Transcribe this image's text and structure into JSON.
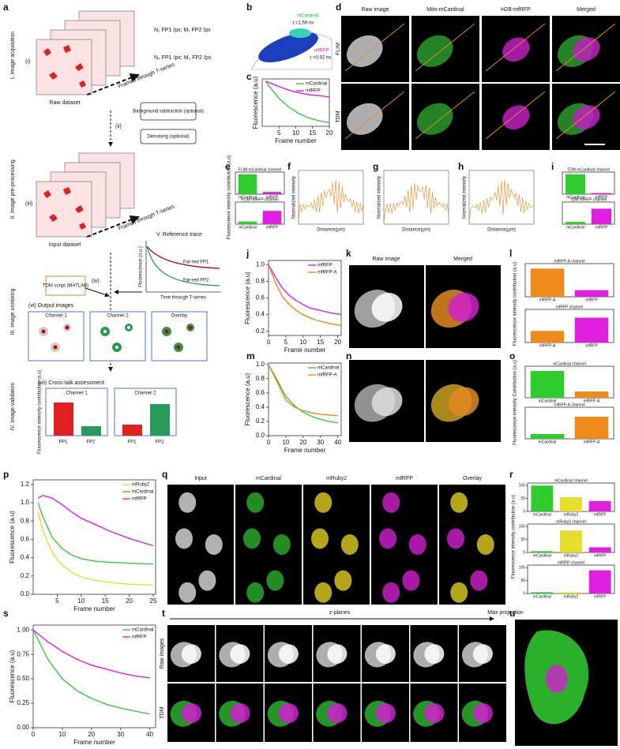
{
  "a": {
    "letter": "a",
    "s1": "I. Image acquisition",
    "s2": "II. Image pre-processing",
    "s3": "III. Image unmixing",
    "s4": "IV. Image validation",
    "i": "(i)",
    "frames1": "Frames through T-series",
    "raw": "Raw dataset",
    "n1": "N₁ FP1 /px; M₁ FP2 /px",
    "n2": "N₂ FP1 /px; M₂ FP2 /px",
    "bg": "Background subtraction (optional)",
    "ii": "(ii)",
    "dn": "Denoising (optional)",
    "iii": "(iii)",
    "frames2": "Frames through T-series",
    "input": "Input dataset",
    "ref": "V. Reference trace",
    "fr1": "Far-red FP1",
    "fr2": "Far-red FP2",
    "fl": "Fluorescence (a.u.)",
    "time": "Time through T-series",
    "tdm": "TDM script (MATLAB)",
    "iv": "(iv)",
    "out": "(vi) Output images",
    "ch1": "Channel 1",
    "ch2": "Channel 2",
    "ov": "Overlay",
    "ct": "(vii) Cross-talk assessment",
    "vch1": "Channel 1",
    "vch2": "Channel 2",
    "vy": "Fluorescence intensity contribution (a.u)",
    "fp1a": "FP1",
    "fp2a": "FP2",
    "fp1b": "FP1",
    "fp2b": "FP2"
  },
  "b": {
    "letter": "b",
    "m": "mCardinal",
    "tm": "τ =1.59 ns",
    "r": "mfRFP",
    "tr": "τ =0.92 ns"
  },
  "d": {
    "letter": "d",
    "cols": [
      "Raw image",
      "Mito-mCardinal",
      "H2B-mfRFP",
      "Merged"
    ],
    "rows": [
      "FLIM",
      "TDM"
    ]
  },
  "profiles": {
    "letters": [
      "f",
      "g",
      "h"
    ],
    "ylabel": "Normalized intensity",
    "xlabel": "Distance(µm)"
  },
  "letters": {
    "c": "c",
    "e": "e",
    "i": "i",
    "j": "j",
    "k": "k",
    "l": "l",
    "m": "m",
    "n": "n",
    "o": "o",
    "p": "p",
    "q": "q",
    "r": "r",
    "s": "s",
    "t": "t",
    "u": "u"
  },
  "k": {
    "cols": [
      "Raw image",
      "Merged"
    ]
  },
  "q": {
    "cols": [
      "Input",
      "mCardinal",
      "mRuby2",
      "mfRFP",
      "Overlay"
    ]
  },
  "t": {
    "z": "z-planes",
    "max": "Max projection",
    "rows": [
      "Raw images",
      "TDM"
    ]
  },
  "bar_ylabels": {
    "e": "Fluorescence intensity contribution (a.u)",
    "l": "Fluorescence intensity contribution (a.u)",
    "o": "Fluorescence intensity Contribution (a.u)",
    "r": "Fluorescence intensity contribution (a.u)"
  },
  "chart_data": [
    {
      "type": "line",
      "xlabel": "Frame number",
      "ylabel": "Fluorescence (a.u)",
      "xlim": [
        0,
        20
      ],
      "ylim": [
        0,
        1.05
      ],
      "xticks": [
        5,
        10,
        15,
        20
      ],
      "legend": "upper right",
      "x": [
        1,
        3,
        5,
        8,
        11,
        14,
        17,
        20
      ],
      "series": [
        {
          "name": "mCardinal",
          "color": "#3ec43e",
          "values": [
            1,
            0.8,
            0.62,
            0.42,
            0.28,
            0.18,
            0.12,
            0.08
          ]
        },
        {
          "name": "mfRFP",
          "color": "#e020e0",
          "values": [
            1,
            0.94,
            0.88,
            0.8,
            0.74,
            0.7,
            0.68,
            0.65
          ]
        }
      ]
    },
    {
      "type": "line",
      "xlabel": "Frame number",
      "ylabel": "Fluorescence (a.u)",
      "xlim": [
        0,
        21
      ],
      "ylim": [
        0.15,
        1.05
      ],
      "xticks": [
        0,
        5,
        10,
        15,
        20
      ],
      "yticks": [
        0.2,
        0.4,
        0.6,
        0.8,
        {
          "value": 1,
          "label": "1.0"
        }
      ],
      "legend": "upper right",
      "x": [
        0,
        2,
        4,
        6,
        8,
        10,
        12,
        14,
        16,
        18,
        21
      ],
      "series": [
        {
          "name": "mfRFP",
          "color": "#e020e0",
          "values": [
            1,
            0.85,
            0.72,
            0.63,
            0.57,
            0.52,
            0.48,
            0.46,
            0.44,
            0.42,
            0.4
          ]
        },
        {
          "name": "mfRFP-A",
          "color": "#e88a1a",
          "values": [
            1,
            0.78,
            0.62,
            0.52,
            0.45,
            0.4,
            0.36,
            0.33,
            0.31,
            0.29,
            0.27
          ]
        }
      ]
    },
    {
      "type": "line",
      "xlabel": "Frame number",
      "ylabel": "Fluorescence (a.u)",
      "xlim": [
        0,
        42
      ],
      "ylim": [
        0,
        1.02
      ],
      "xticks": [
        0,
        10,
        20,
        30,
        40
      ],
      "yticks": [
        {
          "value": 0,
          "label": "0.0"
        },
        0.2,
        0.4,
        0.6,
        0.8,
        {
          "value": 1,
          "label": "1.0"
        }
      ],
      "legend": "upper right",
      "x": [
        0,
        5,
        10,
        15,
        20,
        25,
        30,
        35,
        40
      ],
      "series": [
        {
          "name": "mCardinal",
          "color": "#3ec43e",
          "values": [
            1,
            0.78,
            0.55,
            0.42,
            0.33,
            0.27,
            0.23,
            0.2,
            0.18
          ]
        },
        {
          "name": "mfRFP-A",
          "color": "#e88a1a",
          "values": [
            1,
            0.75,
            0.5,
            0.4,
            0.35,
            0.32,
            0.3,
            0.29,
            0.28
          ]
        }
      ]
    },
    {
      "type": "line",
      "xlabel": "Frame number",
      "ylabel": "Fluorescence (a.u)",
      "xlim": [
        0,
        25.5
      ],
      "ylim": [
        0,
        1.25
      ],
      "xticks": [
        5,
        10,
        15,
        20,
        25
      ],
      "yticks": [
        {
          "value": 0,
          "label": "0.0"
        },
        0.2,
        0.4,
        0.6,
        0.8,
        {
          "value": 1,
          "label": "1.0"
        },
        1.2
      ],
      "legend": "upper right",
      "x": [
        1,
        2,
        4,
        6,
        8,
        10,
        13,
        16,
        20,
        25
      ],
      "series": [
        {
          "name": "mRuby2",
          "color": "#e6dc2a",
          "values": [
            0.9,
            0.7,
            0.45,
            0.32,
            0.24,
            0.19,
            0.15,
            0.13,
            0.11,
            0.1
          ]
        },
        {
          "name": "mCardinal",
          "color": "#3ec43e",
          "values": [
            1,
            0.85,
            0.62,
            0.5,
            0.43,
            0.39,
            0.36,
            0.35,
            0.34,
            0.33
          ]
        },
        {
          "name": "mfRFP",
          "color": "#e020e0",
          "values": [
            1.05,
            1.08,
            1.05,
            0.98,
            0.9,
            0.83,
            0.76,
            0.69,
            0.61,
            0.53
          ]
        }
      ]
    },
    {
      "type": "line",
      "xlabel": "Frame number",
      "ylabel": "Fluorescence (a.u)",
      "xlim": [
        0,
        42
      ],
      "ylim": [
        0,
        1.05
      ],
      "xticks": [
        0,
        10,
        20,
        30,
        40
      ],
      "yticks": [
        {
          "value": 0,
          "label": "0.00"
        },
        {
          "value": 0.25,
          "label": "0.25"
        },
        {
          "value": 0.5,
          "label": "0.50"
        },
        {
          "value": 0.75,
          "label": "0.75"
        },
        {
          "value": 1,
          "label": "1.00"
        }
      ],
      "legend": "upper right",
      "x": [
        0,
        5,
        10,
        15,
        20,
        25,
        30,
        35,
        40
      ],
      "series": [
        {
          "name": "mCardinal",
          "color": "#3ec43e",
          "values": [
            1,
            0.7,
            0.5,
            0.38,
            0.3,
            0.24,
            0.2,
            0.17,
            0.14
          ]
        },
        {
          "name": "mfRFP",
          "color": "#e020e0",
          "values": [
            1,
            0.88,
            0.78,
            0.7,
            0.64,
            0.6,
            0.56,
            0.53,
            0.51
          ]
        }
      ]
    },
    {
      "type": "bar",
      "title": "FLIM mCardinal channel",
      "ylim": [
        0,
        100
      ],
      "categories": [
        "mCardinal",
        "mfRFP"
      ],
      "values": [
        90,
        10
      ],
      "colors": [
        "#2ecc2e",
        "#e020e0"
      ]
    },
    {
      "type": "bar",
      "title": "FLIM mfRFP channel",
      "ylim": [
        0,
        100
      ],
      "categories": [
        "mCardinal",
        "mfRFP"
      ],
      "values": [
        12,
        60
      ],
      "colors": [
        "#2ecc2e",
        "#e020e0"
      ]
    },
    {
      "type": "bar",
      "title": "TDM mCardinal channel",
      "ylim": [
        0,
        100
      ],
      "categories": [
        "mCardinal",
        "mfRFP"
      ],
      "values": [
        90,
        5
      ],
      "colors": [
        "#2ecc2e",
        "#e020e0"
      ]
    },
    {
      "type": "bar",
      "title": "TDM mfRFP channel",
      "ylim": [
        0,
        100
      ],
      "categories": [
        "mCardinal",
        "mfRFP"
      ],
      "values": [
        10,
        70
      ],
      "colors": [
        "#2ecc2e",
        "#e020e0"
      ]
    },
    {
      "type": "bar",
      "title": "mfRFP-A channel",
      "ylim": [
        0,
        100
      ],
      "categories": [
        "mfRFP-A",
        "mfRFP"
      ],
      "values": [
        85,
        20
      ],
      "colors": [
        "#ee8a1a",
        "#e020e0"
      ]
    },
    {
      "type": "bar",
      "title": "mfRFP channel",
      "ylim": [
        0,
        100
      ],
      "categories": [
        "mfRFP-A",
        "mfRFP"
      ],
      "values": [
        35,
        75
      ],
      "colors": [
        "#ee8a1a",
        "#e020e0"
      ]
    },
    {
      "type": "bar",
      "title": "mCardinal channel",
      "ylim": [
        0,
        100
      ],
      "categories": [
        "mCardinal",
        "mfRFP-A"
      ],
      "values": [
        85,
        20
      ],
      "colors": [
        "#2ecc2e",
        "#ee8a1a"
      ]
    },
    {
      "type": "bar",
      "title": "mfRFP-A channel",
      "ylim": [
        0,
        100
      ],
      "categories": [
        "mCardinal",
        "mfRFP-A"
      ],
      "values": [
        15,
        70
      ],
      "colors": [
        "#2ecc2e",
        "#ee8a1a"
      ]
    },
    {
      "type": "bar",
      "title": "mCardinal channel",
      "ylim": [
        0,
        110
      ],
      "yticks": [
        0,
        50,
        100
      ],
      "categories": [
        "mCardinal",
        "mRuby2",
        "mfRFP"
      ],
      "values": [
        100,
        55,
        40
      ],
      "colors": [
        "#2ecc2e",
        "#e6dc2a",
        "#e020e0"
      ]
    },
    {
      "type": "bar",
      "title": "mRuby2 channel",
      "ylim": [
        0,
        110
      ],
      "yticks": [
        0,
        50,
        100
      ],
      "categories": [
        "mCardinal",
        "mRuby2",
        "mfRFP"
      ],
      "values": [
        5,
        85,
        20
      ],
      "colors": [
        "#2ecc2e",
        "#e6dc2a",
        "#e020e0"
      ]
    },
    {
      "type": "bar",
      "title": "mfRFP channel",
      "ylim": [
        0,
        110
      ],
      "yticks": [
        0,
        50,
        100
      ],
      "categories": [
        "mCardinal",
        "mRuby2",
        "mfRFP"
      ],
      "values": [
        5,
        5,
        90
      ],
      "colors": [
        "#2ecc2e",
        "#e6dc2a",
        "#e020e0"
      ]
    }
  ]
}
